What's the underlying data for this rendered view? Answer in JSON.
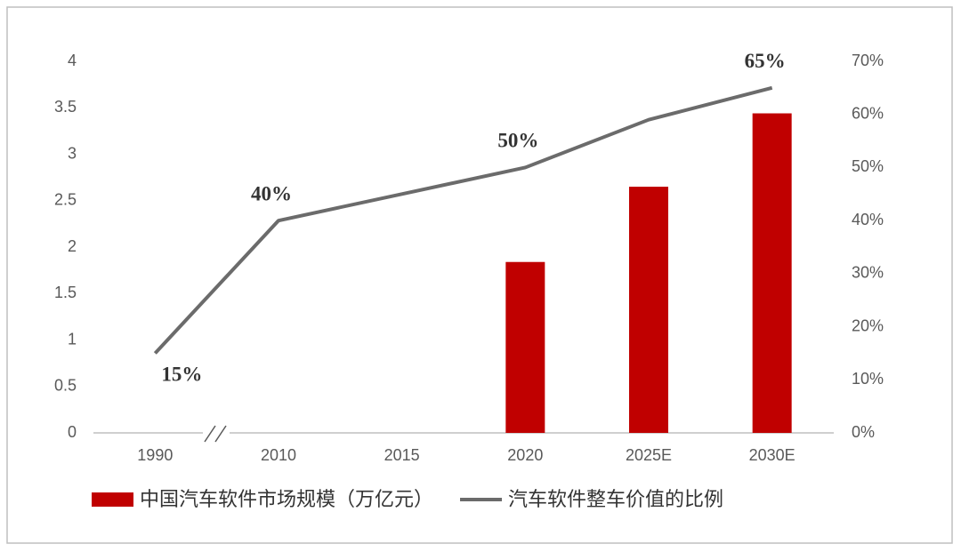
{
  "chart_data": {
    "type": "bar+line",
    "categories": [
      "1990",
      "2010",
      "2015",
      "2020",
      "2025E",
      "2030E"
    ],
    "series": [
      {
        "name": "中国汽车软件市场规模（万亿元）",
        "type": "bar",
        "color": "#c00000",
        "axis": "y",
        "values": [
          null,
          null,
          null,
          1.84,
          2.65,
          3.44
        ]
      },
      {
        "name": "汽车软件整车价值的比例",
        "type": "line",
        "color": "#6b6b6b",
        "axis": "y2",
        "values": [
          15,
          40,
          45,
          50,
          59,
          65
        ],
        "value_labels": [
          "15%",
          "40%",
          null,
          "50%",
          null,
          "65%"
        ]
      }
    ],
    "ylim": [
      0,
      4
    ],
    "yticks": [
      0,
      0.5,
      1,
      1.5,
      2,
      2.5,
      3,
      3.5,
      4
    ],
    "y2lim": [
      0,
      70
    ],
    "y2ticks": [
      {
        "value": 0,
        "label": "0%"
      },
      {
        "value": 10,
        "label": "10%"
      },
      {
        "value": 20,
        "label": "20%"
      },
      {
        "value": 30,
        "label": "30%"
      },
      {
        "value": 40,
        "label": "40%"
      },
      {
        "value": 50,
        "label": "50%"
      },
      {
        "value": 60,
        "label": "60%"
      },
      {
        "value": 70,
        "label": "70%"
      }
    ],
    "legend": "bottom",
    "grid": false
  }
}
